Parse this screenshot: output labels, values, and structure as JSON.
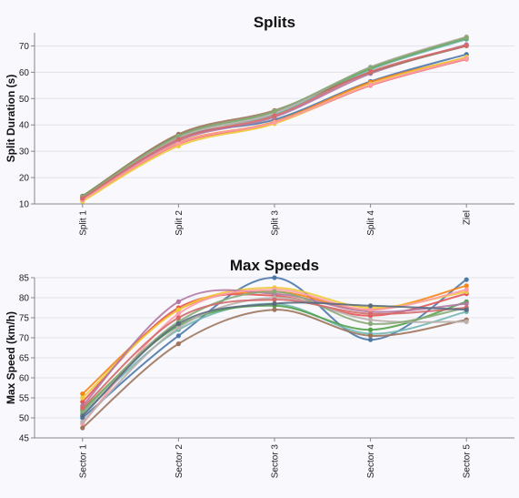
{
  "chart_data": [
    {
      "type": "line",
      "title": "Splits",
      "xlabel": "",
      "ylabel": "Split Duration (s)",
      "categories": [
        "Split 1",
        "Split 2",
        "Split 3",
        "Split 4",
        "Ziel"
      ],
      "ylim": [
        10,
        75
      ],
      "yticks": [
        10,
        20,
        30,
        40,
        50,
        60,
        70
      ],
      "grid": true,
      "series": [
        {
          "color": "#4c78a8",
          "values": [
            12.2,
            35.0,
            42.0,
            56.5,
            66.8
          ]
        },
        {
          "color": "#f58518",
          "values": [
            11.8,
            33.2,
            41.2,
            56.2,
            65.5
          ]
        },
        {
          "color": "#e45756",
          "values": [
            11.5,
            32.8,
            40.8,
            55.0,
            65.0
          ]
        },
        {
          "color": "#72b7b2",
          "values": [
            12.5,
            35.5,
            44.0,
            61.0,
            72.5
          ]
        },
        {
          "color": "#54a24b",
          "values": [
            13.0,
            36.0,
            45.0,
            61.5,
            73.0
          ]
        },
        {
          "color": "#eeca3b",
          "values": [
            11.0,
            32.0,
            40.5,
            55.5,
            65.8
          ]
        },
        {
          "color": "#b279a2",
          "values": [
            12.0,
            34.0,
            43.0,
            59.5,
            70.5
          ]
        },
        {
          "color": "#ff9da6",
          "values": [
            11.6,
            33.0,
            41.0,
            55.2,
            65.2
          ]
        },
        {
          "color": "#9d755d",
          "values": [
            12.8,
            36.5,
            45.5,
            60.0,
            70.0
          ]
        },
        {
          "color": "#bab0ac",
          "values": [
            12.3,
            35.2,
            44.5,
            62.0,
            73.5
          ]
        },
        {
          "color": "#88aa77",
          "values": [
            12.6,
            35.8,
            45.2,
            61.8,
            73.2
          ]
        },
        {
          "color": "#d46a6a",
          "values": [
            12.1,
            34.5,
            43.5,
            60.2,
            70.2
          ]
        }
      ]
    },
    {
      "type": "line",
      "title": "Max Speeds",
      "xlabel": "",
      "ylabel": "Max Speed (km/h)",
      "categories": [
        "Sector 1",
        "Sector 2",
        "Sector 3",
        "Sector 4",
        "Sector 5"
      ],
      "ylim": [
        45,
        85
      ],
      "yticks": [
        45,
        50,
        55,
        60,
        65,
        70,
        75,
        80,
        85
      ],
      "grid": true,
      "series": [
        {
          "color": "#4c78a8",
          "values": [
            50.0,
            70.5,
            85.0,
            69.5,
            84.5
          ]
        },
        {
          "color": "#f58518",
          "values": [
            56.0,
            77.0,
            81.5,
            77.0,
            83.0
          ]
        },
        {
          "color": "#e45756",
          "values": [
            54.0,
            77.5,
            80.5,
            75.5,
            81.0
          ]
        },
        {
          "color": "#72b7b2",
          "values": [
            51.0,
            72.0,
            78.5,
            71.0,
            76.5
          ]
        },
        {
          "color": "#54a24b",
          "values": [
            52.0,
            73.0,
            78.0,
            72.0,
            79.0
          ]
        },
        {
          "color": "#eeca3b",
          "values": [
            55.0,
            77.0,
            82.5,
            77.5,
            81.5
          ]
        },
        {
          "color": "#b279a2",
          "values": [
            53.0,
            79.0,
            81.0,
            76.5,
            78.5
          ]
        },
        {
          "color": "#ff9da6",
          "values": [
            48.5,
            76.0,
            82.0,
            77.0,
            82.0
          ]
        },
        {
          "color": "#9d755d",
          "values": [
            47.5,
            68.5,
            77.0,
            70.5,
            74.5
          ]
        },
        {
          "color": "#bab0ac",
          "values": [
            49.0,
            72.5,
            80.0,
            74.5,
            74.0
          ]
        },
        {
          "color": "#88aa77",
          "values": [
            51.5,
            74.0,
            81.5,
            73.5,
            77.5
          ]
        },
        {
          "color": "#d46a6a",
          "values": [
            52.5,
            75.0,
            79.5,
            76.0,
            77.5
          ]
        },
        {
          "color": "#5b6b7f",
          "values": [
            50.5,
            73.5,
            78.5,
            78.0,
            77.0
          ]
        }
      ]
    }
  ]
}
